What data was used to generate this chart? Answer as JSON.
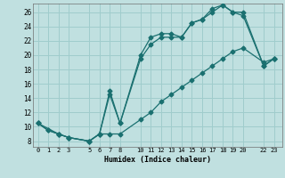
{
  "xlabel": "Humidex (Indice chaleur)",
  "bg_color": "#c0e0e0",
  "grid_color": "#a0cccc",
  "line_color": "#1a7070",
  "xlim": [
    -0.5,
    23.8
  ],
  "ylim": [
    7.2,
    27.2
  ],
  "xticks": [
    0,
    1,
    2,
    3,
    5,
    6,
    7,
    8,
    10,
    11,
    12,
    13,
    14,
    15,
    16,
    17,
    18,
    19,
    20,
    22,
    23
  ],
  "yticks": [
    8,
    10,
    12,
    14,
    16,
    18,
    20,
    22,
    24,
    26
  ],
  "line1_x": [
    0,
    1,
    2,
    3,
    5,
    6,
    7,
    8,
    10,
    11,
    12,
    13,
    14,
    15,
    16,
    17,
    18,
    19,
    20,
    22,
    23
  ],
  "line1_y": [
    10.5,
    9.5,
    9.0,
    8.5,
    8.0,
    9.0,
    15.0,
    10.5,
    20.0,
    22.5,
    23.0,
    23.0,
    22.5,
    24.5,
    25.0,
    26.0,
    27.0,
    26.0,
    26.0,
    18.5,
    19.5
  ],
  "line2_x": [
    0,
    1,
    2,
    3,
    5,
    6,
    7,
    8,
    10,
    11,
    12,
    13,
    14,
    15,
    16,
    17,
    18,
    19,
    20,
    22,
    23
  ],
  "line2_y": [
    10.5,
    9.5,
    9.0,
    8.5,
    8.0,
    9.0,
    14.5,
    10.5,
    19.5,
    21.5,
    22.5,
    22.5,
    22.5,
    24.5,
    25.0,
    26.5,
    27.0,
    26.0,
    25.5,
    18.5,
    19.5
  ],
  "line3_x": [
    0,
    2,
    3,
    5,
    6,
    7,
    8,
    10,
    11,
    12,
    13,
    14,
    15,
    16,
    17,
    18,
    19,
    20,
    22,
    23
  ],
  "line3_y": [
    10.5,
    9.0,
    8.5,
    8.0,
    9.0,
    9.0,
    9.0,
    11.0,
    12.0,
    13.5,
    14.5,
    15.5,
    16.5,
    17.5,
    18.5,
    19.5,
    20.5,
    21.0,
    19.0,
    19.5
  ]
}
